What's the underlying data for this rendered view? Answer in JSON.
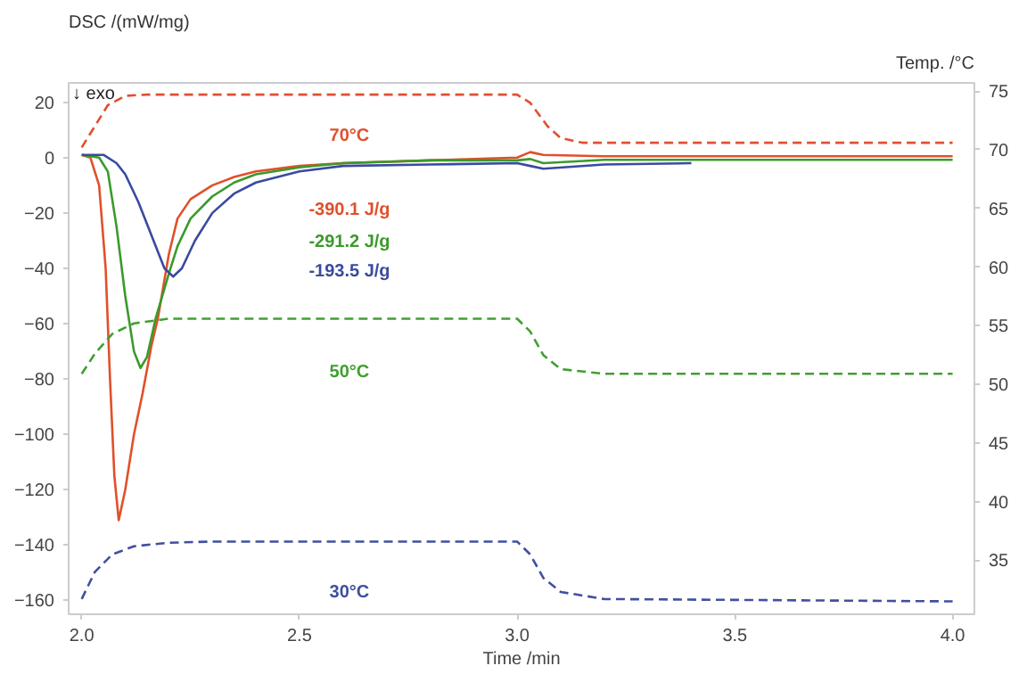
{
  "chart_data": {
    "type": "line",
    "xlabel": "Time /min",
    "ylabel": "DSC /(mW/mg)",
    "y2label": "Temp. /°C",
    "xlim": [
      1.97,
      4.05
    ],
    "xticks": [
      {
        "value": 2,
        "label": "2.0"
      },
      {
        "value": 2.5,
        "label": "2.5"
      },
      {
        "value": 3,
        "label": "3.0"
      },
      {
        "value": 3.5,
        "label": "3.5"
      },
      {
        "value": 4,
        "label": "4.0"
      }
    ],
    "ylim": [
      -165,
      27
    ],
    "yticks": [
      -160,
      -140,
      -120,
      -100,
      -80,
      -60,
      -40,
      -20,
      0,
      20
    ],
    "y2lim": [
      30.4,
      75.7
    ],
    "y2ticks": [
      35,
      40,
      45,
      50,
      55,
      60,
      65,
      70,
      75
    ],
    "grid": false,
    "series": [
      {
        "color": "#e0502a",
        "line_style": "solid",
        "x": [
          2.0,
          2.02,
          2.04,
          2.055,
          2.065,
          2.075,
          2.085,
          2.1,
          2.12,
          2.14,
          2.16,
          2.175,
          2.2,
          2.22,
          2.25,
          2.3,
          2.35,
          2.4,
          2.5,
          2.6,
          2.8,
          3.0,
          3.03,
          3.06,
          3.2,
          4.0
        ],
        "values": [
          1,
          0,
          -10,
          -40,
          -80,
          -115,
          -131,
          -120,
          -100,
          -85,
          -68,
          -58,
          -35,
          -22,
          -15,
          -10,
          -7,
          -5,
          -3,
          -2,
          -1,
          0,
          2,
          1,
          0.5,
          0.5
        ]
      },
      {
        "color": "#3a9a2a",
        "line_style": "solid",
        "x": [
          2.0,
          2.04,
          2.06,
          2.08,
          2.1,
          2.12,
          2.135,
          2.15,
          2.17,
          2.2,
          2.22,
          2.25,
          2.3,
          2.35,
          2.4,
          2.5,
          2.6,
          2.8,
          3.0,
          3.03,
          3.06,
          3.2,
          4.0
        ],
        "values": [
          1,
          0,
          -5,
          -25,
          -50,
          -70,
          -76,
          -72,
          -58,
          -42,
          -32,
          -22,
          -14,
          -9,
          -6,
          -3.5,
          -2,
          -1,
          -1,
          -0.5,
          -2,
          -0.8,
          -0.8
        ]
      },
      {
        "color": "#3a4aa0",
        "line_style": "solid",
        "x": [
          2.0,
          2.05,
          2.08,
          2.1,
          2.13,
          2.16,
          2.19,
          2.21,
          2.23,
          2.26,
          2.3,
          2.35,
          2.4,
          2.5,
          2.6,
          2.8,
          3.0,
          3.03,
          3.06,
          3.2,
          3.4
        ],
        "values": [
          1,
          1,
          -2,
          -6,
          -16,
          -28,
          -40,
          -43,
          -40,
          -30,
          -20,
          -13,
          -9,
          -5,
          -3,
          -2.5,
          -2,
          -3,
          -4,
          -2.5,
          -2
        ]
      },
      {
        "color": "#e05030",
        "line_style": "dashed",
        "axis": "y2",
        "x": [
          2.0,
          2.03,
          2.06,
          2.1,
          2.15,
          3.0,
          3.03,
          3.07,
          3.1,
          3.15,
          4.0
        ],
        "values": [
          70.2,
          72,
          73.8,
          74.6,
          74.7,
          74.7,
          74,
          72,
          71,
          70.6,
          70.6
        ]
      },
      {
        "color": "#40a030",
        "line_style": "dashed",
        "axis": "y2",
        "x": [
          2.0,
          2.03,
          2.07,
          2.12,
          2.2,
          3.0,
          3.03,
          3.06,
          3.1,
          3.2,
          4.0
        ],
        "values": [
          50.9,
          52.6,
          54.3,
          55.2,
          55.6,
          55.6,
          54.5,
          52.5,
          51.3,
          50.9,
          50.9
        ]
      },
      {
        "color": "#4050a0",
        "line_style": "dashed",
        "axis": "y2",
        "x": [
          2.0,
          2.03,
          2.07,
          2.12,
          2.2,
          2.3,
          3.0,
          3.03,
          3.06,
          3.1,
          3.2,
          4.0
        ],
        "values": [
          31.7,
          34,
          35.5,
          36.2,
          36.5,
          36.6,
          36.6,
          35.5,
          33.5,
          32.3,
          31.7,
          31.5
        ]
      }
    ],
    "annotations": [
      "-390.1 J/g",
      "-291.2 J/g",
      "-193.5 J/g",
      "70°C",
      "50°C",
      "30°C",
      "↓ exo"
    ]
  }
}
